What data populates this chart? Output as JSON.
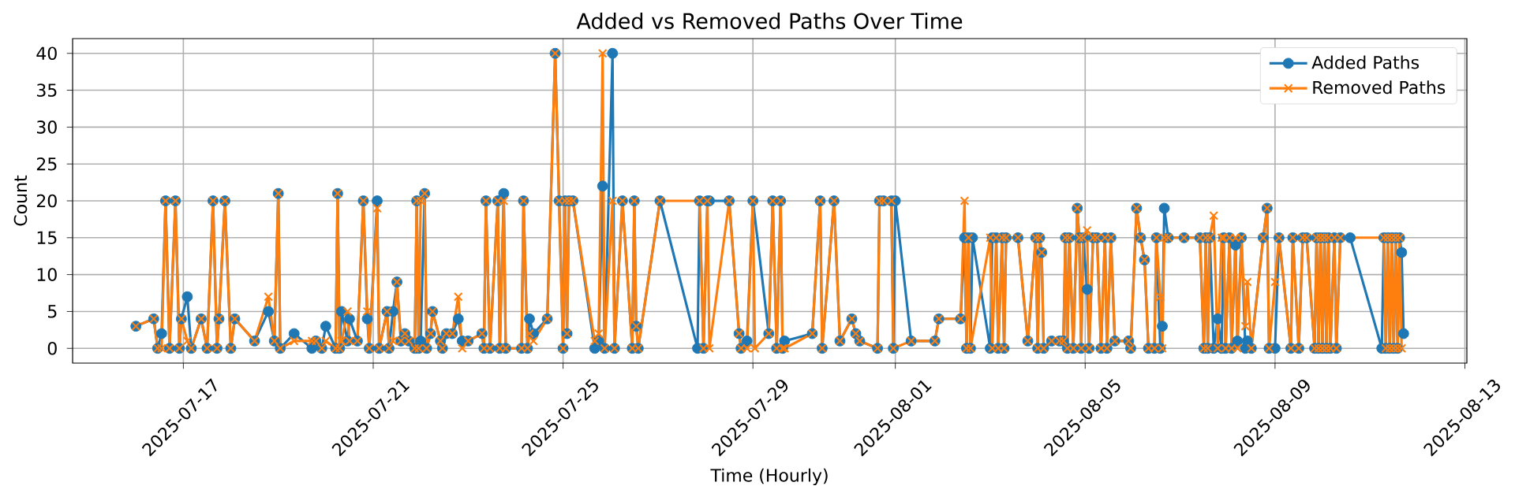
{
  "chart_data": {
    "type": "line",
    "title": "Added vs Removed Paths Over Time",
    "xlabel": "Time (Hourly)",
    "ylabel": "Count",
    "xlim": [
      "2025-07-14T16:00",
      "2025-08-13T01:00"
    ],
    "xticks": [
      "2025-07-17",
      "2025-07-21",
      "2025-07-25",
      "2025-07-29",
      "2025-08-01",
      "2025-08-05",
      "2025-08-09",
      "2025-08-13"
    ],
    "ylim": [
      -2,
      42
    ],
    "yticks": [
      0,
      5,
      10,
      15,
      20,
      25,
      30,
      35,
      40
    ],
    "grid": true,
    "legend": "top right",
    "series": [
      {
        "name": "Added Paths",
        "color": "#1f77b4",
        "marker": "circle",
        "x": [
          "2025-07-16T00:00",
          "2025-07-16T09:00",
          "2025-07-16T11:00",
          "2025-07-16T13:00",
          "2025-07-16T15:00",
          "2025-07-16T17:00",
          "2025-07-16T20:00",
          "2025-07-16T22:00",
          "2025-07-16T23:00",
          "2025-07-17T02:00",
          "2025-07-17T04:00",
          "2025-07-17T09:00",
          "2025-07-17T12:00",
          "2025-07-17T15:00",
          "2025-07-17T17:00",
          "2025-07-17T18:00",
          "2025-07-17T21:00",
          "2025-07-18T00:00",
          "2025-07-18T02:00",
          "2025-07-18T12:00",
          "2025-07-18T19:00",
          "2025-07-18T22:00",
          "2025-07-19T00:00",
          "2025-07-19T01:00",
          "2025-07-19T08:00",
          "2025-07-19T17:00",
          "2025-07-19T19:00",
          "2025-07-19T22:00",
          "2025-07-20T00:00",
          "2025-07-20T05:00",
          "2025-07-20T06:00",
          "2025-07-20T07:00",
          "2025-07-20T08:00",
          "2025-07-20T11:00",
          "2025-07-20T12:00",
          "2025-07-20T16:00",
          "2025-07-20T19:00",
          "2025-07-20T21:00",
          "2025-07-20T22:00",
          "2025-07-21T02:00",
          "2025-07-21T03:00",
          "2025-07-21T07:00",
          "2025-07-21T08:00",
          "2025-07-21T10:00",
          "2025-07-21T12:00",
          "2025-07-21T14:00",
          "2025-07-21T16:00",
          "2025-07-21T18:00",
          "2025-07-21T21:00",
          "2025-07-21T22:00",
          "2025-07-21T23:00",
          "2025-07-22T00:00",
          "2025-07-22T02:00",
          "2025-07-22T03:00",
          "2025-07-22T05:00",
          "2025-07-22T06:00",
          "2025-07-22T10:00",
          "2025-07-22T11:00",
          "2025-07-22T13:00",
          "2025-07-22T16:00",
          "2025-07-22T19:00",
          "2025-07-22T21:00",
          "2025-07-23T00:00",
          "2025-07-23T07:00",
          "2025-07-23T08:00",
          "2025-07-23T09:00",
          "2025-07-23T11:00",
          "2025-07-23T15:00",
          "2025-07-23T16:00",
          "2025-07-23T18:00",
          "2025-07-23T19:00",
          "2025-07-24T03:00",
          "2025-07-24T04:00",
          "2025-07-24T06:00",
          "2025-07-24T07:00",
          "2025-07-24T09:00",
          "2025-07-24T16:00",
          "2025-07-24T20:00",
          "2025-07-24T22:00",
          "2025-07-25T00:00",
          "2025-07-25T01:00",
          "2025-07-25T02:00",
          "2025-07-25T03:00",
          "2025-07-25T05:00",
          "2025-07-25T16:00",
          "2025-07-25T18:00",
          "2025-07-25T20:00",
          "2025-07-25T21:00",
          "2025-07-26T01:00",
          "2025-07-26T02:00",
          "2025-07-26T06:00",
          "2025-07-26T11:00",
          "2025-07-26T12:00",
          "2025-07-26T13:00",
          "2025-07-26T14:00",
          "2025-07-27T01:00",
          "2025-07-27T20:00",
          "2025-07-27T21:00",
          "2025-07-27T23:00",
          "2025-07-28T01:00",
          "2025-07-28T02:00",
          "2025-07-28T12:00",
          "2025-07-28T17:00",
          "2025-07-28T18:00",
          "2025-07-28T21:00",
          "2025-07-29T00:00",
          "2025-07-29T08:00",
          "2025-07-29T10:00",
          "2025-07-29T12:00",
          "2025-07-29T14:00",
          "2025-07-29T15:00",
          "2025-07-29T16:00",
          "2025-07-30T06:00",
          "2025-07-30T10:00",
          "2025-07-30T11:00",
          "2025-07-30T17:00",
          "2025-07-30T20:00",
          "2025-07-31T02:00",
          "2025-07-31T04:00",
          "2025-07-31T06:00",
          "2025-07-31T15:00",
          "2025-07-31T16:00",
          "2025-07-31T18:00",
          "2025-07-31T22:00",
          "2025-07-31T23:00",
          "2025-08-01T00:00",
          "2025-08-01T08:00",
          "2025-08-01T20:00",
          "2025-08-01T22:00",
          "2025-08-02T09:00",
          "2025-08-02T11:00",
          "2025-08-02T12:00",
          "2025-08-02T13:00",
          "2025-08-02T14:00",
          "2025-08-02T15:00",
          "2025-08-03T00:00",
          "2025-08-03T01:00",
          "2025-08-03T03:00",
          "2025-08-03T04:00",
          "2025-08-03T06:00",
          "2025-08-03T07:00",
          "2025-08-03T08:00",
          "2025-08-03T14:00",
          "2025-08-03T19:00",
          "2025-08-03T23:00",
          "2025-08-04T00:00",
          "2025-08-04T01:00",
          "2025-08-04T02:00",
          "2025-08-04T03:00",
          "2025-08-04T07:00",
          "2025-08-04T11:00",
          "2025-08-04T13:00",
          "2025-08-04T14:00",
          "2025-08-04T15:00",
          "2025-08-04T16:00",
          "2025-08-04T18:00",
          "2025-08-04T20:00",
          "2025-08-04T21:00",
          "2025-08-04T22:00",
          "2025-08-04T23:00",
          "2025-08-05T01:00",
          "2025-08-05T02:00",
          "2025-08-05T04:00",
          "2025-08-05T06:00",
          "2025-08-05T08:00",
          "2025-08-05T10:00",
          "2025-08-05T11:00",
          "2025-08-05T13:00",
          "2025-08-05T15:00",
          "2025-08-05T22:00",
          "2025-08-05T23:00",
          "2025-08-06T02:00",
          "2025-08-06T04:00",
          "2025-08-06T06:00",
          "2025-08-06T08:00",
          "2025-08-06T11:00",
          "2025-08-06T12:00",
          "2025-08-06T14:00",
          "2025-08-06T15:00",
          "2025-08-06T16:00",
          "2025-08-06T18:00",
          "2025-08-07T02:00",
          "2025-08-07T10:00",
          "2025-08-07T12:00",
          "2025-08-07T13:00",
          "2025-08-07T14:00",
          "2025-08-07T15:00",
          "2025-08-07T17:00",
          "2025-08-07T19:00",
          "2025-08-07T21:00",
          "2025-08-07T22:00",
          "2025-08-07T23:00",
          "2025-08-08T01:00",
          "2025-08-08T02:00",
          "2025-08-08T04:00",
          "2025-08-08T05:00",
          "2025-08-08T07:00",
          "2025-08-08T09:00",
          "2025-08-08T10:00",
          "2025-08-08T12:00",
          "2025-08-08T18:00",
          "2025-08-08T20:00",
          "2025-08-08T21:00",
          "2025-08-09T00:00",
          "2025-08-09T02:00",
          "2025-08-09T08:00",
          "2025-08-09T09:00",
          "2025-08-09T12:00",
          "2025-08-09T14:00",
          "2025-08-09T16:00",
          "2025-08-09T20:00",
          "2025-08-09T21:00",
          "2025-08-09T22:00",
          "2025-08-09T23:00",
          "2025-08-10T00:00",
          "2025-08-10T01:00",
          "2025-08-10T02:00",
          "2025-08-10T03:00",
          "2025-08-10T04:00",
          "2025-08-10T06:00",
          "2025-08-10T07:00",
          "2025-08-10T09:00",
          "2025-08-10T14:00",
          "2025-08-11T06:00",
          "2025-08-11T07:00",
          "2025-08-11T08:00",
          "2025-08-11T09:00",
          "2025-08-11T10:00",
          "2025-08-11T11:00",
          "2025-08-11T12:00",
          "2025-08-11T13:00",
          "2025-08-11T14:00",
          "2025-08-11T15:00",
          "2025-08-11T16:00",
          "2025-08-11T17:00"
        ],
        "values": [
          3,
          4,
          0,
          2,
          20,
          0,
          20,
          0,
          4,
          7,
          0,
          4,
          0,
          20,
          0,
          4,
          20,
          0,
          4,
          1,
          5,
          1,
          21,
          0,
          2,
          0,
          1,
          0,
          3,
          0,
          21,
          0,
          5,
          1,
          4,
          1,
          20,
          4,
          0,
          20,
          0,
          5,
          0,
          5,
          9,
          1,
          2,
          1,
          0,
          20,
          0,
          1,
          21,
          0,
          2,
          5,
          1,
          0,
          2,
          2,
          4,
          1,
          1,
          2,
          0,
          20,
          0,
          20,
          0,
          21,
          0,
          0,
          20,
          0,
          4,
          2,
          4,
          40,
          20,
          0,
          20,
          2,
          20,
          20,
          0,
          1,
          22,
          0,
          40,
          0,
          20,
          0,
          20,
          3,
          0,
          20,
          0,
          20,
          0,
          20,
          20,
          20,
          2,
          0,
          1,
          20,
          2,
          20,
          0,
          20,
          0,
          1,
          2,
          20,
          0,
          20,
          1,
          4,
          2,
          1,
          0,
          20,
          20,
          20,
          0,
          20,
          1,
          1,
          4,
          4,
          15,
          0,
          15,
          0,
          15,
          0,
          15,
          15,
          0,
          15,
          0,
          15,
          15,
          1,
          15,
          0,
          15,
          13,
          0,
          1,
          1,
          1,
          15,
          0,
          15,
          0,
          19,
          15,
          0,
          15,
          8,
          0,
          15,
          15,
          0,
          15,
          0,
          15,
          1,
          1,
          0,
          19,
          15,
          12,
          0,
          0,
          15,
          0,
          3,
          19,
          15,
          15,
          15,
          0,
          15,
          0,
          15,
          0,
          4,
          0,
          15,
          0,
          15,
          0,
          14,
          1,
          15,
          0,
          1,
          0,
          15,
          19,
          0,
          0,
          15,
          0,
          15,
          0,
          15,
          15,
          0,
          15,
          0,
          15,
          0,
          15,
          0,
          15,
          0,
          15,
          0,
          15,
          15,
          0,
          15,
          0,
          15,
          0,
          15,
          0,
          15,
          0,
          15,
          13,
          2
        ]
      },
      {
        "name": "Removed Paths",
        "color": "#ff7f0e",
        "marker": "cross",
        "x": [
          "2025-07-16T00:00",
          "2025-07-16T09:00",
          "2025-07-16T11:00",
          "2025-07-16T13:00",
          "2025-07-16T15:00",
          "2025-07-16T17:00",
          "2025-07-16T20:00",
          "2025-07-16T22:00",
          "2025-07-16T23:00",
          "2025-07-17T02:00",
          "2025-07-17T04:00",
          "2025-07-17T09:00",
          "2025-07-17T12:00",
          "2025-07-17T15:00",
          "2025-07-17T17:00",
          "2025-07-17T18:00",
          "2025-07-17T21:00",
          "2025-07-18T00:00",
          "2025-07-18T02:00",
          "2025-07-18T12:00",
          "2025-07-18T19:00",
          "2025-07-18T22:00",
          "2025-07-19T00:00",
          "2025-07-19T01:00",
          "2025-07-19T08:00",
          "2025-07-19T17:00",
          "2025-07-19T19:00",
          "2025-07-19T22:00",
          "2025-07-20T00:00",
          "2025-07-20T05:00",
          "2025-07-20T06:00",
          "2025-07-20T07:00",
          "2025-07-20T08:00",
          "2025-07-20T11:00",
          "2025-07-20T12:00",
          "2025-07-20T16:00",
          "2025-07-20T19:00",
          "2025-07-20T21:00",
          "2025-07-20T22:00",
          "2025-07-21T02:00",
          "2025-07-21T03:00",
          "2025-07-21T07:00",
          "2025-07-21T08:00",
          "2025-07-21T10:00",
          "2025-07-21T12:00",
          "2025-07-21T14:00",
          "2025-07-21T16:00",
          "2025-07-21T18:00",
          "2025-07-21T21:00",
          "2025-07-21T22:00",
          "2025-07-21T23:00",
          "2025-07-22T00:00",
          "2025-07-22T02:00",
          "2025-07-22T03:00",
          "2025-07-22T05:00",
          "2025-07-22T06:00",
          "2025-07-22T10:00",
          "2025-07-22T11:00",
          "2025-07-22T13:00",
          "2025-07-22T16:00",
          "2025-07-22T19:00",
          "2025-07-22T21:00",
          "2025-07-23T00:00",
          "2025-07-23T07:00",
          "2025-07-23T08:00",
          "2025-07-23T09:00",
          "2025-07-23T11:00",
          "2025-07-23T15:00",
          "2025-07-23T16:00",
          "2025-07-23T18:00",
          "2025-07-23T19:00",
          "2025-07-24T03:00",
          "2025-07-24T04:00",
          "2025-07-24T06:00",
          "2025-07-24T07:00",
          "2025-07-24T09:00",
          "2025-07-24T16:00",
          "2025-07-24T20:00",
          "2025-07-24T22:00",
          "2025-07-25T00:00",
          "2025-07-25T01:00",
          "2025-07-25T02:00",
          "2025-07-25T03:00",
          "2025-07-25T05:00",
          "2025-07-25T16:00",
          "2025-07-25T18:00",
          "2025-07-25T20:00",
          "2025-07-25T21:00",
          "2025-07-26T01:00",
          "2025-07-26T02:00",
          "2025-07-26T06:00",
          "2025-07-26T11:00",
          "2025-07-26T12:00",
          "2025-07-26T13:00",
          "2025-07-26T14:00",
          "2025-07-27T01:00",
          "2025-07-27T21:00",
          "2025-07-27T23:00",
          "2025-07-28T01:00",
          "2025-07-28T02:00",
          "2025-07-28T12:00",
          "2025-07-28T17:00",
          "2025-07-28T18:00",
          "2025-07-28T21:00",
          "2025-07-29T00:00",
          "2025-07-29T01:00",
          "2025-07-29T08:00",
          "2025-07-29T10:00",
          "2025-07-29T12:00",
          "2025-07-29T14:00",
          "2025-07-29T15:00",
          "2025-07-29T16:00",
          "2025-07-30T06:00",
          "2025-07-30T10:00",
          "2025-07-30T11:00",
          "2025-07-30T17:00",
          "2025-07-30T20:00",
          "2025-07-31T02:00",
          "2025-07-31T04:00",
          "2025-07-31T06:00",
          "2025-07-31T15:00",
          "2025-07-31T16:00",
          "2025-07-31T18:00",
          "2025-07-31T22:00",
          "2025-07-31T23:00",
          "2025-08-01T08:00",
          "2025-08-01T20:00",
          "2025-08-01T22:00",
          "2025-08-02T09:00",
          "2025-08-02T11:00",
          "2025-08-02T12:00",
          "2025-08-02T13:00",
          "2025-08-02T14:00",
          "2025-08-03T00:00",
          "2025-08-03T01:00",
          "2025-08-03T03:00",
          "2025-08-03T04:00",
          "2025-08-03T06:00",
          "2025-08-03T07:00",
          "2025-08-03T08:00",
          "2025-08-03T14:00",
          "2025-08-03T19:00",
          "2025-08-03T23:00",
          "2025-08-04T00:00",
          "2025-08-04T01:00",
          "2025-08-04T02:00",
          "2025-08-04T03:00",
          "2025-08-04T07:00",
          "2025-08-04T11:00",
          "2025-08-04T13:00",
          "2025-08-04T14:00",
          "2025-08-04T15:00",
          "2025-08-04T16:00",
          "2025-08-04T18:00",
          "2025-08-04T20:00",
          "2025-08-04T21:00",
          "2025-08-04T22:00",
          "2025-08-04T23:00",
          "2025-08-05T01:00",
          "2025-08-05T02:00",
          "2025-08-05T04:00",
          "2025-08-05T06:00",
          "2025-08-05T08:00",
          "2025-08-05T10:00",
          "2025-08-05T11:00",
          "2025-08-05T13:00",
          "2025-08-05T15:00",
          "2025-08-05T22:00",
          "2025-08-05T23:00",
          "2025-08-06T02:00",
          "2025-08-06T04:00",
          "2025-08-06T06:00",
          "2025-08-06T08:00",
          "2025-08-06T11:00",
          "2025-08-06T12:00",
          "2025-08-06T14:00",
          "2025-08-06T15:00",
          "2025-08-06T16:00",
          "2025-08-06T18:00",
          "2025-08-07T02:00",
          "2025-08-07T10:00",
          "2025-08-07T12:00",
          "2025-08-07T13:00",
          "2025-08-07T14:00",
          "2025-08-07T15:00",
          "2025-08-07T17:00",
          "2025-08-07T19:00",
          "2025-08-07T21:00",
          "2025-08-07T22:00",
          "2025-08-07T23:00",
          "2025-08-08T01:00",
          "2025-08-08T02:00",
          "2025-08-08T04:00",
          "2025-08-08T05:00",
          "2025-08-08T07:00",
          "2025-08-08T09:00",
          "2025-08-08T10:00",
          "2025-08-08T12:00",
          "2025-08-08T18:00",
          "2025-08-08T20:00",
          "2025-08-08T21:00",
          "2025-08-09T00:00",
          "2025-08-09T02:00",
          "2025-08-09T08:00",
          "2025-08-09T09:00",
          "2025-08-09T12:00",
          "2025-08-09T14:00",
          "2025-08-09T16:00",
          "2025-08-09T20:00",
          "2025-08-09T21:00",
          "2025-08-09T22:00",
          "2025-08-09T23:00",
          "2025-08-10T00:00",
          "2025-08-10T01:00",
          "2025-08-10T02:00",
          "2025-08-10T03:00",
          "2025-08-10T04:00",
          "2025-08-10T06:00",
          "2025-08-10T07:00",
          "2025-08-10T09:00",
          "2025-08-11T07:00",
          "2025-08-11T08:00",
          "2025-08-11T09:00",
          "2025-08-11T10:00",
          "2025-08-11T11:00",
          "2025-08-11T12:00",
          "2025-08-11T13:00",
          "2025-08-11T14:00",
          "2025-08-11T15:00",
          "2025-08-11T16:00"
        ],
        "values": [
          3,
          4,
          0,
          0,
          20,
          0,
          20,
          0,
          4,
          1,
          0,
          4,
          0,
          20,
          0,
          4,
          20,
          0,
          4,
          1,
          7,
          1,
          21,
          0,
          1,
          1,
          1,
          0,
          1,
          0,
          21,
          0,
          1,
          5,
          1,
          1,
          20,
          5,
          0,
          19,
          0,
          5,
          0,
          1,
          9,
          1,
          2,
          1,
          0,
          20,
          0,
          20,
          21,
          0,
          2,
          5,
          1,
          0,
          2,
          2,
          7,
          0,
          1,
          2,
          0,
          20,
          0,
          20,
          0,
          20,
          0,
          0,
          20,
          0,
          2,
          1,
          4,
          40,
          20,
          0,
          20,
          2,
          20,
          20,
          1,
          2,
          40,
          0,
          20,
          0,
          20,
          0,
          20,
          3,
          0,
          20,
          20,
          0,
          20,
          0,
          20,
          2,
          0,
          0,
          20,
          0,
          2,
          20,
          0,
          20,
          0,
          0,
          2,
          20,
          0,
          20,
          1,
          4,
          2,
          1,
          0,
          20,
          20,
          20,
          0,
          1,
          1,
          4,
          4,
          20,
          0,
          15,
          0,
          15,
          0,
          15,
          0,
          15,
          0,
          15,
          15,
          1,
          15,
          0,
          15,
          13,
          0,
          1,
          1,
          1,
          15,
          0,
          15,
          0,
          19,
          15,
          0,
          15,
          16,
          0,
          15,
          15,
          0,
          15,
          0,
          15,
          1,
          1,
          0,
          19,
          15,
          12,
          0,
          0,
          15,
          7,
          0,
          15,
          15,
          15,
          15,
          0,
          15,
          0,
          15,
          18,
          0,
          15,
          15,
          0,
          15,
          0,
          15,
          0,
          15,
          3,
          9,
          0,
          15,
          19,
          0,
          9,
          15,
          0,
          15,
          0,
          15,
          15,
          0,
          15,
          0,
          15,
          0,
          15,
          0,
          15,
          0,
          15,
          0,
          15,
          15,
          0,
          15,
          0,
          15,
          0,
          15,
          0,
          15,
          0
        ]
      }
    ]
  }
}
